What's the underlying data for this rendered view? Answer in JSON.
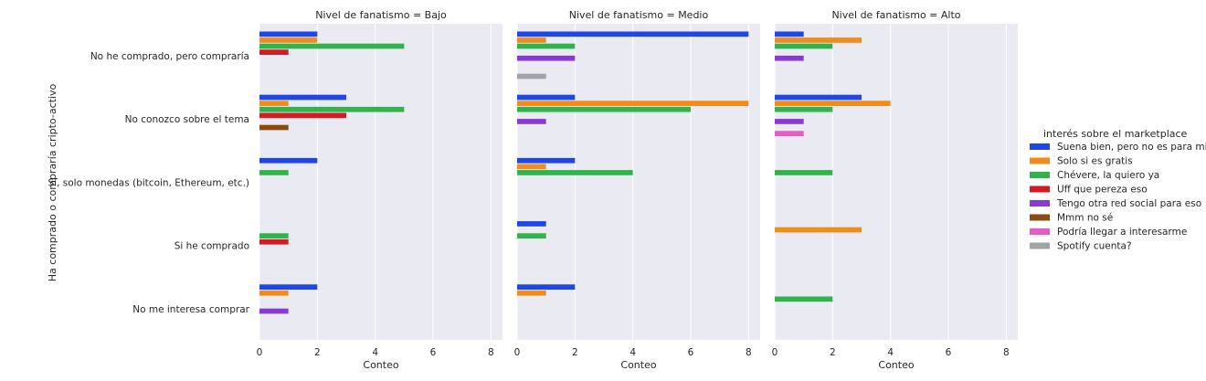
{
  "chart_data": {
    "type": "bar",
    "orientation": "horizontal",
    "ylabel": "Ha comprado o compraría cripto-activo",
    "xlabel": "Conteo",
    "xlim": [
      0,
      8.4
    ],
    "xticks": [
      0,
      2,
      4,
      6,
      8
    ],
    "grid": true,
    "legend_title": "interés sobre el marketplace",
    "legend_position": "right",
    "categories": [
      "No he comprado, pero compraría",
      "No conozco sobre el tema",
      "Sí, solo monedas (bitcoin, Ethereum, etc.)",
      "Si he comprado",
      "No me interesa comprar"
    ],
    "hues": [
      {
        "name": "Suena bien, pero no es para mi",
        "color": "#1f47e6"
      },
      {
        "name": "Solo si es gratis",
        "color": "#f08c1a"
      },
      {
        "name": "Chévere, la quiero ya",
        "color": "#2fb34a"
      },
      {
        "name": "Uff que pereza eso",
        "color": "#d41b24"
      },
      {
        "name": "Tengo otra red social para eso",
        "color": "#8a3ad4"
      },
      {
        "name": "Mmm no sé",
        "color": "#8b4a0f"
      },
      {
        "name": "Podría llegar a interesarme",
        "color": "#e65cc7"
      },
      {
        "name": "Spotify cuenta?",
        "color": "#a3a3a3"
      }
    ],
    "panels": [
      {
        "title": "Nivel de fanatismo = Bajo",
        "values": [
          [
            2,
            2,
            5,
            1,
            0,
            0,
            0,
            0
          ],
          [
            3,
            1,
            5,
            3,
            0,
            1,
            0,
            0
          ],
          [
            2,
            0,
            1,
            0,
            0,
            0,
            0,
            0
          ],
          [
            0,
            0,
            1,
            1,
            0,
            0,
            0,
            0
          ],
          [
            2,
            1,
            0,
            0,
            1,
            0,
            0,
            0
          ]
        ]
      },
      {
        "title": "Nivel de fanatismo = Medio",
        "values": [
          [
            8,
            1,
            2,
            0,
            2,
            0,
            0,
            1
          ],
          [
            2,
            8,
            6,
            0,
            1,
            0,
            0,
            0
          ],
          [
            2,
            1,
            4,
            0,
            0,
            0,
            0,
            0
          ],
          [
            1,
            0,
            1,
            0,
            0,
            0,
            0,
            0
          ],
          [
            2,
            1,
            0,
            0,
            0,
            0,
            0,
            0
          ]
        ]
      },
      {
        "title": "Nivel de fanatismo = Alto",
        "values": [
          [
            1,
            3,
            2,
            0,
            1,
            0,
            0,
            0
          ],
          [
            3,
            4,
            2,
            0,
            1,
            0,
            1,
            0
          ],
          [
            0,
            0,
            2,
            0,
            0,
            0,
            0,
            0
          ],
          [
            0,
            3,
            0,
            0,
            0,
            0,
            0,
            0
          ],
          [
            0,
            0,
            2,
            0,
            0,
            0,
            0,
            0
          ]
        ]
      }
    ]
  }
}
